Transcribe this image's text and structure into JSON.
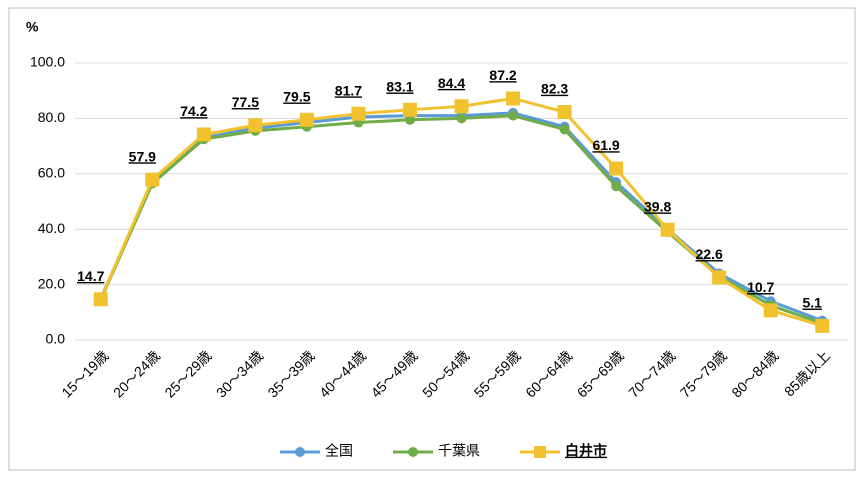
{
  "chart_data": {
    "type": "line",
    "y_label": "%",
    "categories": [
      "15〜19歳",
      "20〜24歳",
      "25〜29歳",
      "30〜34歳",
      "35〜39歳",
      "40〜44歳",
      "45〜49歳",
      "50〜54歳",
      "55〜59歳",
      "60〜64歳",
      "65〜69歳",
      "70〜74歳",
      "75〜79歳",
      "80〜84歳",
      "85歳以上"
    ],
    "series": [
      {
        "name": "全国",
        "color": "#5b9bd5",
        "marker": "circle",
        "values": [
          15.0,
          57.0,
          73.0,
          76.5,
          78.5,
          80.5,
          81.0,
          81.0,
          82.0,
          77.0,
          57.0,
          40.0,
          24.0,
          14.0,
          7.0
        ]
      },
      {
        "name": "千葉県",
        "color": "#70ad47",
        "marker": "circle",
        "values": [
          14.5,
          56.5,
          72.5,
          75.5,
          77.0,
          78.5,
          79.5,
          80.0,
          81.0,
          76.0,
          55.5,
          39.0,
          23.0,
          12.5,
          6.0
        ]
      },
      {
        "name": "白井市",
        "color": "#f2c12e",
        "marker": "square",
        "show_labels": true,
        "values": [
          14.7,
          57.9,
          74.2,
          77.5,
          79.5,
          81.7,
          83.1,
          84.4,
          87.2,
          82.3,
          61.9,
          39.8,
          22.6,
          10.7,
          5.1
        ]
      }
    ],
    "ylim": [
      0,
      100
    ],
    "yticks": [
      {
        "value": 0,
        "label": "0.0"
      },
      {
        "value": 20,
        "label": "20.0"
      },
      {
        "value": 40,
        "label": "40.0"
      },
      {
        "value": 60,
        "label": "60.0"
      },
      {
        "value": 80,
        "label": "80.0"
      },
      {
        "value": 100,
        "label": "100.0"
      }
    ],
    "grid": true,
    "legend": "bottom"
  }
}
